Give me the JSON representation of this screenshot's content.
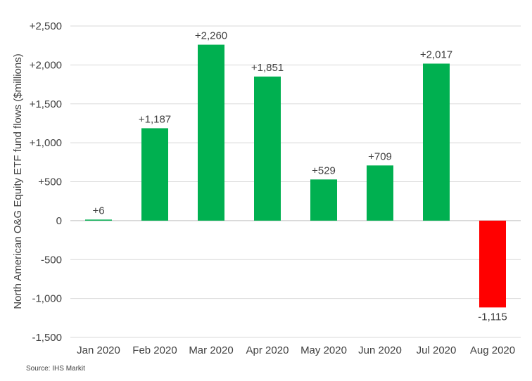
{
  "chart_data": {
    "type": "bar",
    "title": "",
    "xlabel": "",
    "ylabel": "North American O&G Equity ETF fund flows ($millions)",
    "categories": [
      "Jan 2020",
      "Feb 2020",
      "Mar 2020",
      "Apr 2020",
      "May 2020",
      "Jun 2020",
      "Jul 2020",
      "Aug 2020"
    ],
    "values": [
      6,
      1187,
      2260,
      1851,
      529,
      709,
      2017,
      -1115
    ],
    "data_labels": [
      "+6",
      "+1,187",
      "+2,260",
      "+1,851",
      "+529",
      "+709",
      "+2,017",
      "-1,115"
    ],
    "ylim": [
      -1500,
      2500
    ],
    "yticks": [
      2500,
      2000,
      1500,
      1000,
      500,
      0,
      -500,
      -1000,
      -1500
    ],
    "ytick_labels": [
      "+2,500",
      "+2,000",
      "+1,500",
      "+1,000",
      "+500",
      "0",
      "-500",
      "-1,000",
      "-1,500"
    ],
    "grid": true,
    "colors": {
      "positive": "#00b050",
      "negative": "#ff0000",
      "grid": "#d9d9d9"
    }
  },
  "source": "Source: IHS  Markit"
}
